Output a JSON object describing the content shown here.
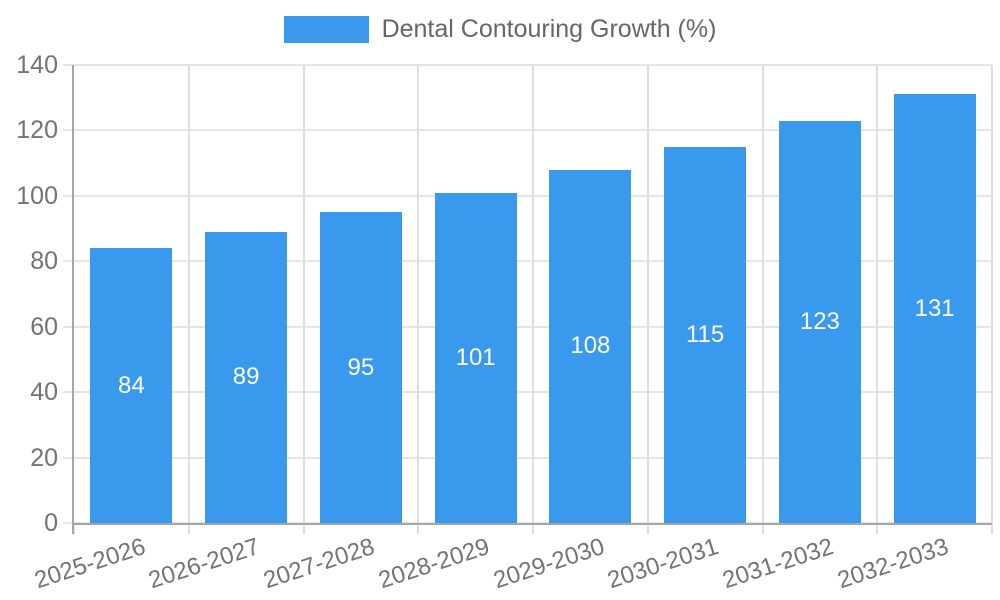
{
  "chart_data": {
    "type": "bar",
    "title": "Dental Contouring Growth (%)",
    "legend_position": "top",
    "categories": [
      "2025-2026",
      "2026-2027",
      "2027-2028",
      "2028-2029",
      "2029-2030",
      "2030-2031",
      "2031-2032",
      "2032-2033"
    ],
    "values": [
      84,
      89,
      95,
      101,
      108,
      115,
      123,
      131
    ],
    "xlabel": "",
    "ylabel": "",
    "ylim": [
      0,
      140
    ],
    "yticks": [
      0,
      20,
      40,
      60,
      80,
      100,
      120,
      140
    ],
    "grid": true,
    "bar_color": "#3999ed",
    "value_label_color": "#ffffff"
  },
  "colors": {
    "bar": "#3999ed",
    "axis_line": "#a6a6a6",
    "grid_h": "#e5e5e5",
    "grid_v": "#dedede",
    "tick_text": "#737373",
    "legend_text": "#666666",
    "value_text": "#ffffff",
    "background": "#ffffff"
  }
}
